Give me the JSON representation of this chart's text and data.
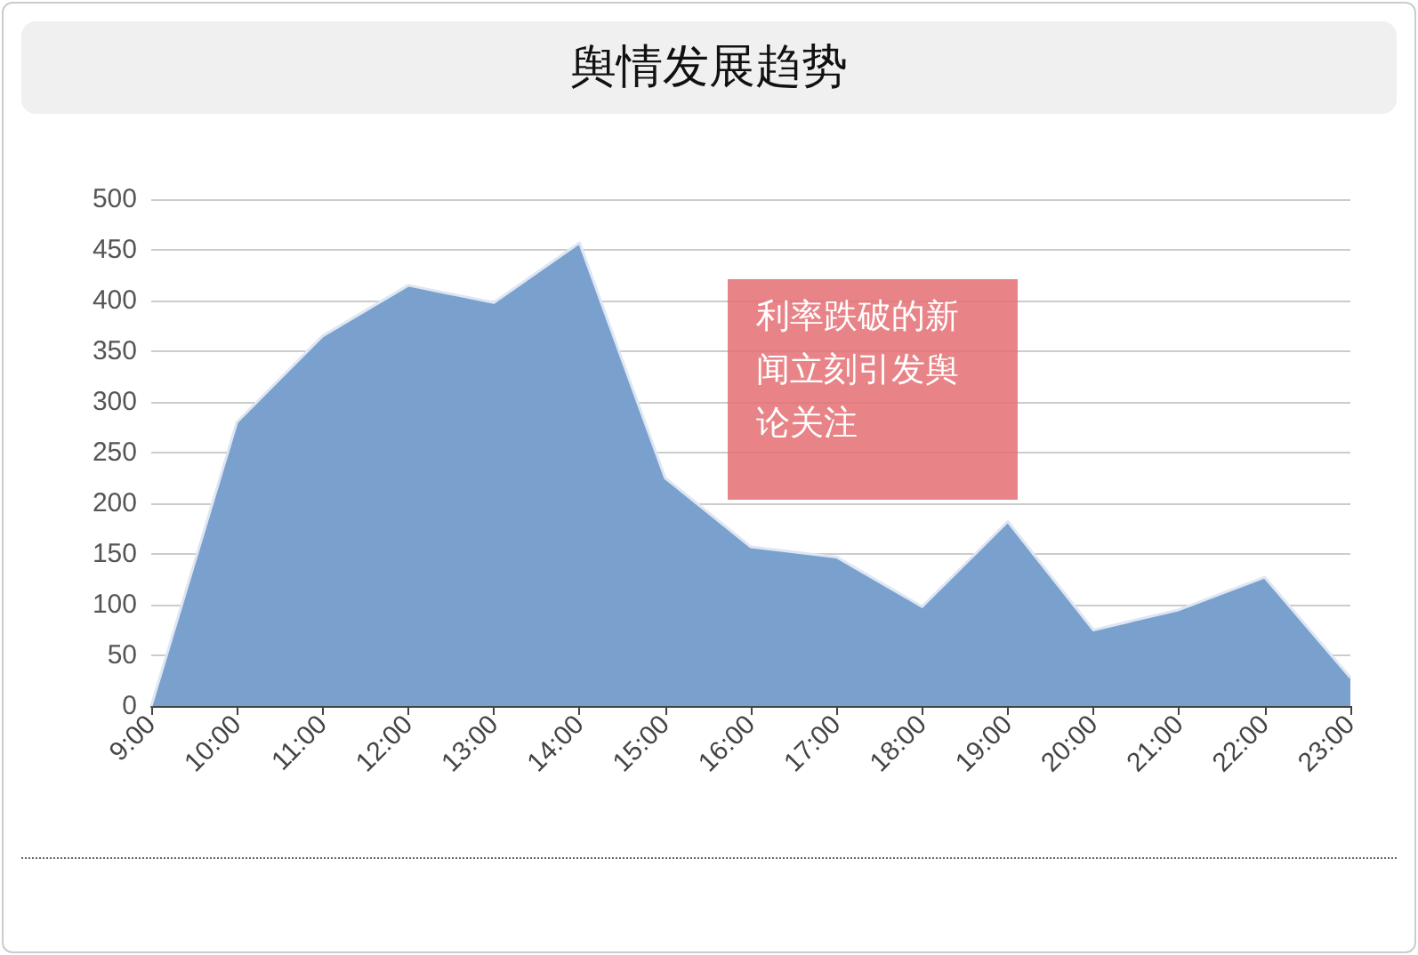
{
  "chart_data": {
    "type": "area",
    "title": "舆情发展趋势",
    "categories": [
      "9:00",
      "10:00",
      "11:00",
      "12:00",
      "13:00",
      "14:00",
      "15:00",
      "16:00",
      "17:00",
      "18:00",
      "19:00",
      "20:00",
      "21:00",
      "22:00",
      "23:00"
    ],
    "values": [
      0,
      280,
      365,
      415,
      398,
      457,
      225,
      157,
      147,
      98,
      182,
      75,
      95,
      127,
      28
    ],
    "color": "#7aa1cd",
    "ylim": [
      0,
      500
    ],
    "yticks": [
      0,
      50,
      100,
      150,
      200,
      250,
      300,
      350,
      400,
      450,
      500
    ],
    "grid": "y",
    "annotations": [
      "利率跌破的新闻立刻引发舆论关注"
    ]
  }
}
